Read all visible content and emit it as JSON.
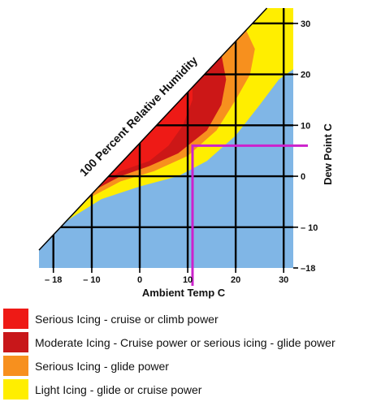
{
  "chart_data": {
    "type": "heatmap",
    "title": "",
    "xlabel": "Ambient Temp C",
    "ylabel": "Dew Point C",
    "diagonal_label": "100 Percent Relative Humidity",
    "xlim": [
      -21,
      32
    ],
    "ylim": [
      -18,
      33
    ],
    "x_ticks": [
      -18,
      -10,
      0,
      10,
      20,
      30
    ],
    "x_tick_labels": [
      "– 18",
      "– 10",
      "0",
      "10",
      "20",
      "30"
    ],
    "y_ticks": [
      -18,
      -10,
      0,
      10,
      20,
      30
    ],
    "y_tick_labels": [
      "–18",
      "– 10",
      "0",
      "10",
      "20",
      "30"
    ],
    "grid_x": [
      -18,
      -10,
      0,
      10,
      20,
      30
    ],
    "grid_y": [
      -10,
      0,
      10,
      20,
      30
    ],
    "zones": [
      {
        "level": "light",
        "color": "#ffee00",
        "boundary": [
          [
            -20,
            -12
          ],
          [
            -14,
            -8
          ],
          [
            -8,
            -4.5
          ],
          [
            0,
            -2
          ],
          [
            8,
            0
          ],
          [
            14,
            3
          ],
          [
            20,
            8
          ],
          [
            25,
            14
          ],
          [
            29,
            19
          ],
          [
            32,
            21
          ]
        ]
      },
      {
        "level": "serious_glide",
        "color": "#f7901e",
        "boundary": [
          [
            -16,
            -8
          ],
          [
            -10,
            -4
          ],
          [
            -4,
            -1
          ],
          [
            3,
            1
          ],
          [
            10,
            4
          ],
          [
            16,
            9
          ],
          [
            20,
            15
          ],
          [
            23,
            20
          ],
          [
            24,
            25
          ],
          [
            22,
            29
          ],
          [
            20,
            31
          ]
        ]
      },
      {
        "level": "moderate",
        "color": "#cc1717",
        "boundary": [
          [
            -10,
            -3
          ],
          [
            -4,
            0
          ],
          [
            2,
            2
          ],
          [
            8,
            4.5
          ],
          [
            14,
            9
          ],
          [
            17,
            14
          ],
          [
            18,
            19
          ],
          [
            17,
            24
          ],
          [
            15,
            27
          ]
        ]
      },
      {
        "level": "serious_cruise",
        "color": "#ee1a16",
        "boundary": [
          [
            -10,
            -3
          ],
          [
            -4,
            1
          ],
          [
            2,
            3
          ],
          [
            6,
            6
          ],
          [
            9,
            10
          ],
          [
            11,
            15
          ],
          [
            11,
            18
          ],
          [
            9,
            21
          ]
        ]
      }
    ],
    "background_color": "#80b6e6",
    "marker": {
      "ambient_temp": 11,
      "dew_point": 6,
      "color": "#cc22cc"
    }
  },
  "legend": [
    {
      "label": "Serious Icing - cruise or climb power",
      "color": "#ee1a16"
    },
    {
      "label": "Moderate Icing - Cruise power or serious icing - glide power",
      "color": "#c8171a"
    },
    {
      "label": "Serious Icing - glide power",
      "color": "#f7901e"
    },
    {
      "label": "Light Icing - glide or cruise power",
      "color": "#ffee00"
    }
  ]
}
